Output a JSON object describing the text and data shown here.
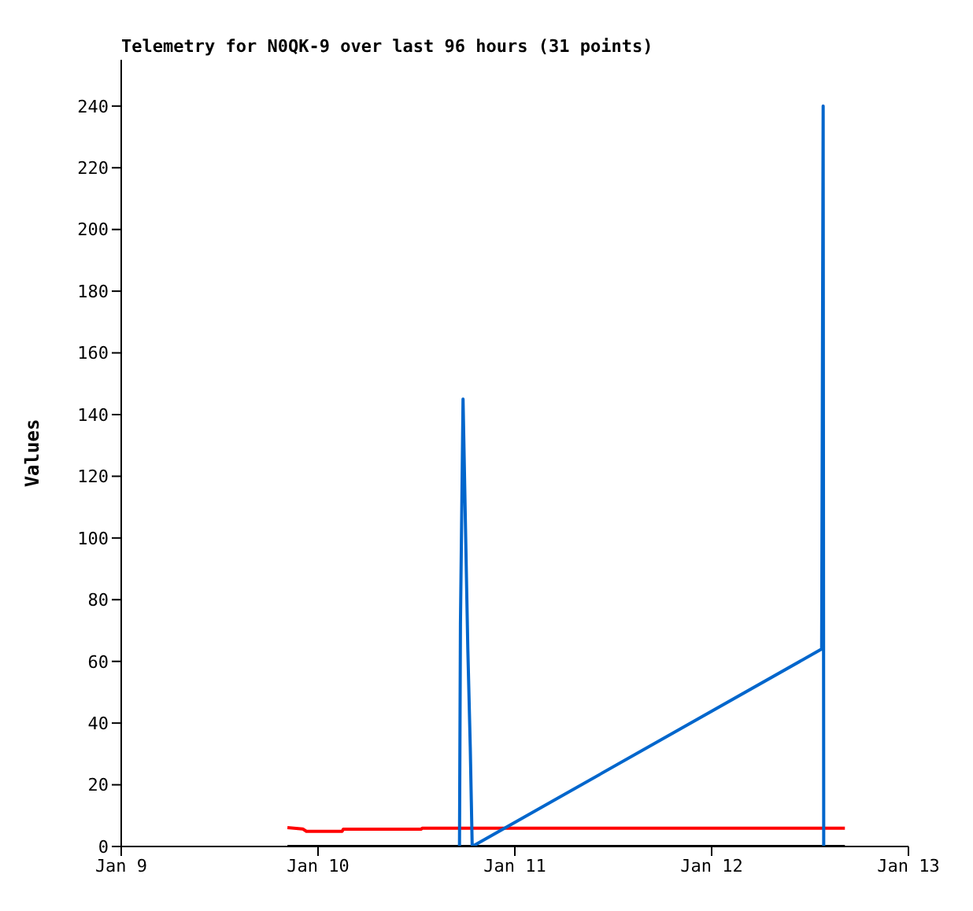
{
  "chart_data": {
    "type": "line",
    "title": "Telemetry for N0QK-9 over last 96 hours (31 points)",
    "ylabel": "Values",
    "xlim": [
      "--01-09",
      "--01-13"
    ],
    "xticks": [
      {
        "value": "--01-09",
        "label": "Jan 9"
      },
      {
        "value": "--01-10",
        "label": "Jan 10"
      },
      {
        "value": "--01-11",
        "label": "Jan 11"
      },
      {
        "value": "--01-12",
        "label": "Jan 12"
      },
      {
        "value": "--01-13",
        "label": "Jan 13"
      }
    ],
    "ylim": [
      0,
      255
    ],
    "yticks": [
      0,
      20,
      40,
      60,
      80,
      100,
      120,
      140,
      160,
      180,
      200,
      220,
      240
    ],
    "grid": false,
    "legend": false,
    "marker": "none",
    "line_style": "solid",
    "series": [
      {
        "color": "#ff0000",
        "x": [
          "--01-09T20:16",
          "--01-09T22:08",
          "--01-09T22:35",
          "--01-10T02:56",
          "--01-10T03:05",
          "--01-10T12:33",
          "--01-10T12:42",
          "--01-12T16:15"
        ],
        "values": [
          6.1,
          5.7,
          4.9,
          4.9,
          5.6,
          5.6,
          5.9,
          5.9
        ]
      },
      {
        "color": "#000000",
        "x": [
          "--01-09T20:16",
          "--01-12T16:15"
        ],
        "values": [
          0,
          0
        ]
      },
      {
        "color": "#0066cc",
        "x": [
          "--01-10T17:15",
          "--01-10T17:22",
          "--01-10T17:41",
          "--01-10T18:16",
          "--01-10T18:34",
          "--01-10T18:48",
          "--01-12T13:25",
          "--01-12T13:36",
          "--01-12T13:40"
        ],
        "values": [
          0,
          72,
          145,
          64,
          32,
          0,
          64,
          240,
          0
        ]
      }
    ]
  }
}
